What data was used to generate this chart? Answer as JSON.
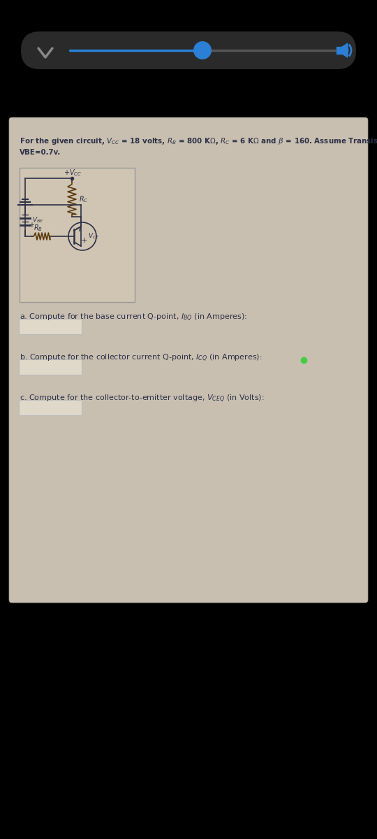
{
  "bg_top": "#000000",
  "bg_card": "#c8bfb0",
  "slider_line_color": "#2b7fd4",
  "slider_knob_color": "#2b7fd4",
  "text_color": "#2d3047",
  "input_box_color": "#e0d8c8",
  "input_box_border": "#bbbbbb",
  "title1": "For the given circuit, $V_{CC}$ = 18 volts, $R_B$ = 800 K$\\Omega$, $R_C$ = 6 K$\\Omega$ and $\\beta$ = 160. Assume Transistor is Silicon,",
  "title2": "VBE=0.7v.",
  "q_a": "a. Compute for the base current Q-point, $I_{BQ}$ (in Amperes):",
  "q_b": "b. Compute for the collector current Q-point, $I_{CQ}$ (in Amperes):",
  "q_c": "c. Compute for the collector-to-emitter voltage, $V_{CEQ}$ (in Volts):",
  "vcc_label": "$+V_{CC}$",
  "rc_label": "$R_C$",
  "rb_label": "$R_B$",
  "vce_label": "$V_{CE}$",
  "vbe_label": "$V_{BE}$"
}
